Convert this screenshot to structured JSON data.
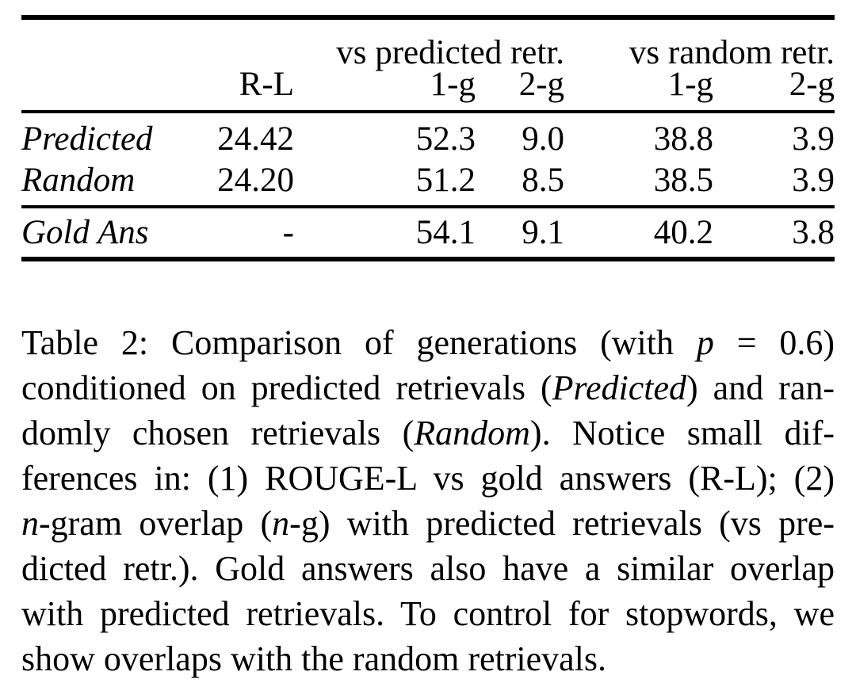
{
  "table": {
    "group_headers": [
      {
        "label": "vs predicted retr."
      },
      {
        "label": "vs random retr."
      }
    ],
    "col_headers": {
      "metric": "R-L",
      "pred_1g": "1-g",
      "pred_2g": "2-g",
      "rand_1g": "1-g",
      "rand_2g": "2-g"
    },
    "rows": [
      {
        "label": "Predicted",
        "r_l": "24.42",
        "pred_1g": "52.3",
        "pred_2g": "9.0",
        "rand_1g": "38.8",
        "rand_2g": "3.9"
      },
      {
        "label": "Random",
        "r_l": "24.20",
        "pred_1g": "51.2",
        "pred_2g": "8.5",
        "rand_1g": "38.5",
        "rand_2g": "3.9"
      }
    ],
    "gold_row": {
      "label": "Gold Ans",
      "r_l": "-",
      "pred_1g": "54.1",
      "pred_2g": "9.1",
      "rand_1g": "40.2",
      "rand_2g": "3.8"
    }
  },
  "caption": {
    "lines": [
      [
        {
          "t": "Table 2: Comparison of generations (with "
        },
        {
          "t": "p",
          "i": true
        },
        {
          "t": " = 0.6)"
        }
      ],
      [
        {
          "t": "conditioned on predicted retrievals ("
        },
        {
          "t": "Predicted",
          "i": true
        },
        {
          "t": ") and ran-"
        }
      ],
      [
        {
          "t": "domly chosen retrievals ("
        },
        {
          "t": "Random",
          "i": true
        },
        {
          "t": "). Notice small dif-"
        }
      ],
      [
        {
          "t": "ferences in: (1) ROUGE-L vs gold answers (R-L); (2)"
        }
      ],
      [
        {
          "t": "n",
          "i": true
        },
        {
          "t": "-gram overlap ("
        },
        {
          "t": "n",
          "i": true
        },
        {
          "t": "-g) with predicted retrievals (vs pre-"
        }
      ],
      [
        {
          "t": "dicted retr.). Gold answers also have a similar overlap"
        }
      ],
      [
        {
          "t": "with predicted retrievals. To control for stopwords, we"
        }
      ],
      [
        {
          "t": "show overlaps with the random retrievals."
        }
      ]
    ]
  }
}
